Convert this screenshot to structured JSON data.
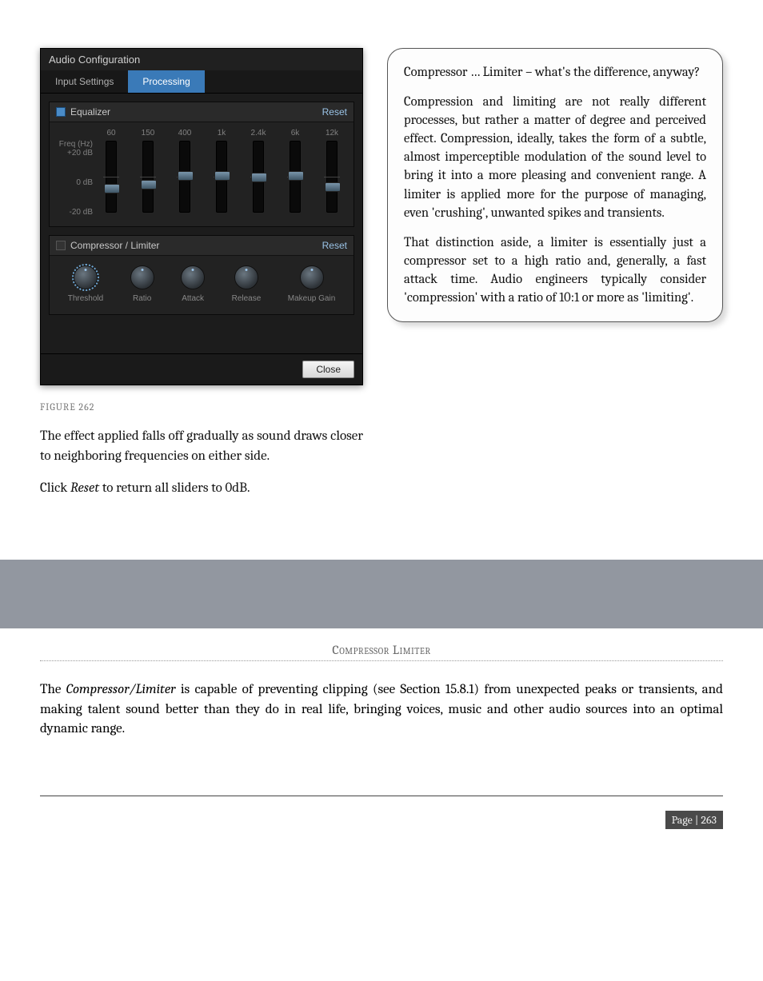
{
  "ui": {
    "title": "Audio Configuration",
    "tabs": {
      "input": "Input Settings",
      "processing": "Processing"
    },
    "eq": {
      "title": "Equalizer",
      "reset": "Reset",
      "y_label_top": "Freq (Hz)",
      "y_label_plus": "+20 dB",
      "y_label_zero": "0 dB",
      "y_label_minus": "-20 dB",
      "freqs": [
        "60",
        "150",
        "400",
        "1k",
        "2.4k",
        "6k",
        "12k"
      ],
      "thumb_top_pct": [
        60,
        55,
        42,
        42,
        44,
        42,
        58
      ]
    },
    "comp": {
      "title": "Compressor / Limiter",
      "reset": "Reset",
      "knobs": [
        "Threshold",
        "Ratio",
        "Attack",
        "Release",
        "Makeup Gain"
      ]
    },
    "close": "Close"
  },
  "figure_caption": "FIGURE 262",
  "left_para1": "The effect applied falls off gradually as sound draws closer to neighboring frequencies on either side.",
  "left_para2_pre": "Click ",
  "left_para2_em": "Reset",
  "left_para2_post": " to return all sliders to 0dB.",
  "callout": {
    "p1": "Compressor … Limiter – what's the difference, anyway?",
    "p2": "Compression and limiting are not really different processes, but rather a matter of degree and perceived effect. Compression, ideally, takes the form of a subtle, almost imperceptible modulation of the sound level to bring it into a more pleasing and convenient range.  A limiter is applied more for the purpose of managing, even 'crushing', unwanted spikes and transients.",
    "p3": "That distinction aside, a limiter is essentially just a compressor set to a high ratio and, generally, a fast attack time. Audio engineers typically consider 'compression' with a ratio of 10:1 or more as 'limiting'."
  },
  "ch_heading": "Compressor Limiter",
  "below_pre": "The ",
  "below_em": "Compressor/Limiter",
  "below_post": " is capable of preventing clipping (see Section 15.8.1) from unexpected peaks or transients, and making talent sound better than they do in real life, bringing voices, music and other audio sources into an optimal dynamic range.",
  "page_num": "Page | 263",
  "colors": {
    "tab_active_bg": "#3a7ab8",
    "panel_bg": "#1c1c1c",
    "band_bg": "#9297a0",
    "footer_badge_bg": "#4a4a4a"
  }
}
